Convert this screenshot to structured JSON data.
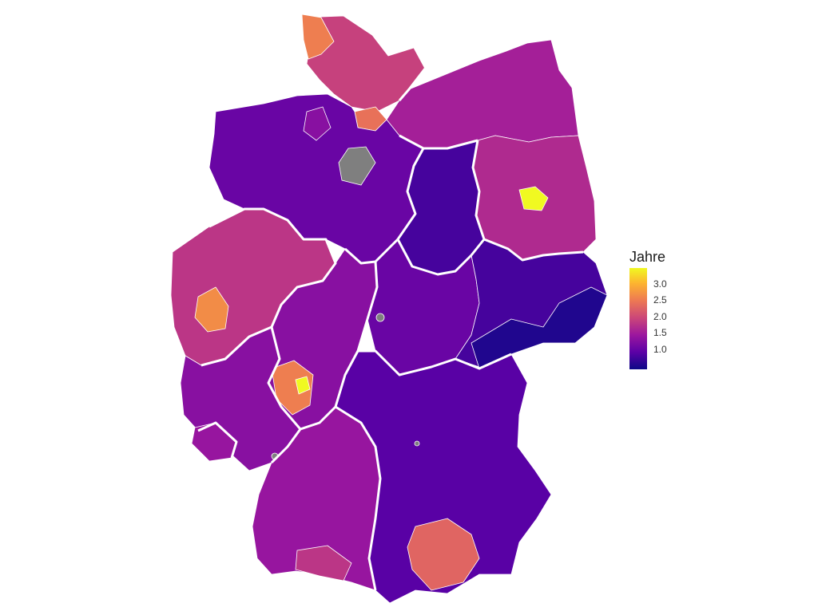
{
  "legend": {
    "title": "Jahre",
    "ticks": [
      "3.0",
      "2.5",
      "2.0",
      "1.5",
      "1.0"
    ],
    "scale_min": 0.8,
    "scale_max": 3.3,
    "colors": [
      "#0d0887",
      "#5c01a6",
      "#9c179e",
      "#cc4778",
      "#ed7953",
      "#fdb42f",
      "#f0f921"
    ],
    "missing_color": "#7f7f7f"
  },
  "map": {
    "name": "Germany districts",
    "region_values": {
      "schleswig-holstein": 2.0,
      "sylt-coast": 2.5,
      "hamburg-area": 2.4,
      "mecklenburg-vorpommern": 1.7,
      "niedersachsen": 1.3,
      "bremen-area": 1.5,
      "brandenburg": 1.8,
      "berlin": 3.3,
      "sachsen-anhalt": 1.1,
      "nordrhein-westfalen": 1.9,
      "cologne-bonn": 2.6,
      "hessen": 1.5,
      "frankfurt-rhein-main": 2.5,
      "frankfurt": 3.3,
      "thueringen": 1.3,
      "sachsen": 1.1,
      "east-sachsen": 0.9,
      "rheinland-pfalz": 1.5,
      "saarland": 1.6,
      "bayern": 1.2,
      "munich-area": 2.3,
      "baden-wuerttemberg": 1.6,
      "bodensee": 1.9
    }
  }
}
